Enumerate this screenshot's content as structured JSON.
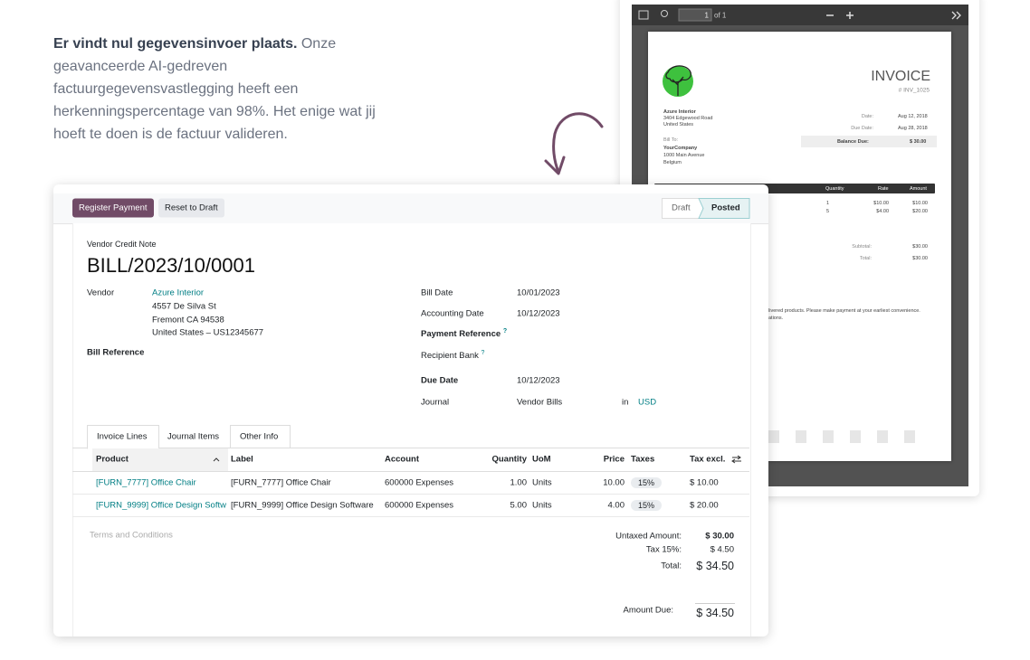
{
  "intro": {
    "lead": "Er vindt nul gegevensinvoer plaats.",
    "body_lines": [
      "Onze",
      "geavanceerde AI-gedreven",
      "factuurgegevensvastlegging heeft een",
      "herkenningspercentage van 98%. Het enige wat jij",
      "hoeft te doen is de factuur valideren."
    ]
  },
  "pdf_viewer": {
    "page": "1",
    "page_count": "of 1",
    "invoice": {
      "title": "INVOICE",
      "number": "# INV_1025",
      "from": [
        "Azure Interior",
        "3404 Edgewood Road",
        "United States"
      ],
      "date_label": "Date:",
      "date": "Aug 12, 2018",
      "due_label": "Due Date:",
      "due": "Aug 28, 2018",
      "bill_to_label": "Bill To:",
      "bill_to": [
        "YourCompany",
        "1000 Main Avenue",
        "Belgium"
      ],
      "balance_label": "Balance Due:",
      "balance": "$ 30.00",
      "columns": [
        "Quantity",
        "Rate",
        "Amount"
      ],
      "rows": [
        [
          "1",
          "$10.00",
          "$10.00"
        ],
        [
          "5",
          "$4.00",
          "$20.00"
        ]
      ],
      "subtotal_label": "Subtotal:",
      "subtotal": "$30.00",
      "total_label": "Total:",
      "total": "$30.00",
      "note_lines": [
        "livered products. Please make payment at your earliest convenience.",
        "ations."
      ]
    }
  },
  "bill_form": {
    "buttons": [
      "Register Payment",
      "Reset to Draft"
    ],
    "statuses": [
      "Draft",
      "Posted"
    ],
    "doc_type": "Vendor Credit Note",
    "name": "BILL/2023/10/0001",
    "vendor_label": "Vendor",
    "vendor": "Azure Interior",
    "address": [
      "4557 De Silva St",
      "Fremont CA 94538",
      "United States – US12345677"
    ],
    "bill_reference_label": "Bill Reference",
    "fields": [
      {
        "label": "Bill Date",
        "value": "10/01/2023"
      },
      {
        "label": "Accounting Date",
        "value": "10/12/2023"
      },
      {
        "label": "Payment Reference",
        "hint": "?"
      },
      {
        "label": "Recipient Bank",
        "hint": "?"
      },
      {
        "label": "Due Date",
        "value": "10/12/2023"
      },
      {
        "label": "Journal",
        "value": "Vendor Bills",
        "in": "in",
        "currency": "USD"
      }
    ],
    "tabs": [
      "Invoice Lines",
      "Journal Items",
      "Other Info"
    ],
    "columns": [
      "Product",
      "Label",
      "Account",
      "Quantity",
      "UoM",
      "Price",
      "Taxes",
      "Tax excl."
    ],
    "lines": [
      [
        "[FURN_7777] Office Chair",
        "[FURN_7777] Office Chair",
        "600000 Expenses",
        "1.00",
        "Units",
        "10.00",
        "15%",
        "$ 10.00"
      ],
      [
        "[FURN_9999] Office Design Softw",
        "[FURN_9999] Office Design Software",
        "600000 Expenses",
        "5.00",
        "Units",
        "4.00",
        "15%",
        "$ 20.00"
      ]
    ],
    "terms": "Terms and Conditions",
    "untaxed_label": "Untaxed Amount:",
    "untaxed": "$ 30.00",
    "tax_label": "Tax 15%:",
    "tax": "$ 4.50",
    "total_label": "Total:",
    "total": "$ 34.50",
    "due_label": "Amount Due:",
    "due": "$ 34.50"
  }
}
